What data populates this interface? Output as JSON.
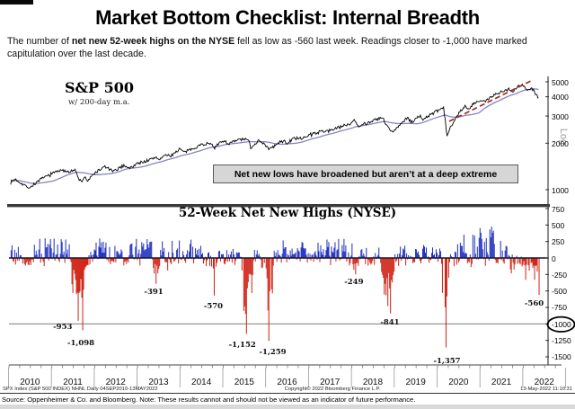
{
  "page": {
    "title": "Market Bottom Checklist: Internal Breadth",
    "subtitle_pre": "The number of ",
    "subtitle_bold": "net new 52-week highs on the NYSE",
    "subtitle_post": " fell as low as -560 last week.  Readings closer to -1,000 have marked capitulation over the last decade."
  },
  "colors": {
    "positive_bar": "#1f2fbf",
    "negative_bar": "#cf2012",
    "price_line": "#000000",
    "ma_line": "#8585c5",
    "trend_dash": "#9e2b25",
    "gridline_minus_1000": "#8a8a8a",
    "axis": "#444444",
    "divider": "#3a3a3a",
    "callout_bg": "#d6d6d6"
  },
  "top_chart": {
    "label": "S&P 500",
    "sublabel": "w/ 200-day m.a.",
    "callout": "Net new lows have broadened but aren’t at a deep extreme",
    "scale_label": "Log",
    "y_ticks": [
      {
        "label": "5000",
        "value": 5000
      },
      {
        "label": "4000",
        "value": 4000
      },
      {
        "label": "3000",
        "value": 3000
      },
      {
        "label": "2000",
        "value": 2000
      },
      {
        "label": "1000",
        "value": 1000
      }
    ]
  },
  "bottom_chart": {
    "title": "52-Week Net New Highs (NYSE)",
    "y_ticks": [
      {
        "label": "750",
        "value": 750
      },
      {
        "label": "500",
        "value": 500
      },
      {
        "label": "250",
        "value": 250
      },
      {
        "label": "0",
        "value": 0
      },
      {
        "label": "-250",
        "value": -250
      },
      {
        "label": "-500",
        "value": -500
      },
      {
        "label": "-750",
        "value": -750
      },
      {
        "label": "-1000",
        "value": -1000
      },
      {
        "label": "-1250",
        "value": -1250
      },
      {
        "label": "-1500",
        "value": -1500
      }
    ],
    "circled_tick": "-1000",
    "years": [
      "2010",
      "2011",
      "2012",
      "2013",
      "2014",
      "2015",
      "2016",
      "2017",
      "2018",
      "2019",
      "2020",
      "2021",
      "2022"
    ]
  },
  "footer": {
    "ticker_line": "SPX Index (S&P 500 INDEX) NHNL  Daily 04SEP2010-13MAY2022",
    "copyright": "Copyright© 2022 Bloomberg Finance L.P.",
    "timestamp": "13-May-2022 11:10:31",
    "source_note": "Source: Oppenheimer & Co. and Bloomberg.  Note: These results cannot and should not be viewed as an indicator of future performance."
  },
  "chart_data": [
    {
      "type": "line",
      "title": "S&P 500 w/ 200-day m.a.",
      "y_scale": "log",
      "ylim": [
        900,
        5300
      ],
      "x_range": [
        2010.05,
        2022.38
      ],
      "legend_position": "none",
      "grid": false,
      "series": [
        {
          "name": "S&P 500",
          "points": [
            [
              2010.05,
              1120
            ],
            [
              2010.15,
              1170
            ],
            [
              2010.35,
              1080
            ],
            [
              2010.5,
              1030
            ],
            [
              2010.7,
              1145
            ],
            [
              2011.0,
              1270
            ],
            [
              2011.15,
              1330
            ],
            [
              2011.35,
              1320
            ],
            [
              2011.55,
              1340
            ],
            [
              2011.62,
              1200
            ],
            [
              2011.7,
              1120
            ],
            [
              2011.78,
              1220
            ],
            [
              2011.85,
              1130
            ],
            [
              2012.0,
              1280
            ],
            [
              2012.25,
              1410
            ],
            [
              2012.45,
              1310
            ],
            [
              2012.7,
              1440
            ],
            [
              2012.85,
              1380
            ],
            [
              2013.0,
              1480
            ],
            [
              2013.3,
              1560
            ],
            [
              2013.45,
              1630
            ],
            [
              2013.5,
              1570
            ],
            [
              2013.7,
              1690
            ],
            [
              2013.75,
              1630
            ],
            [
              2014.0,
              1840
            ],
            [
              2014.1,
              1740
            ],
            [
              2014.5,
              1960
            ],
            [
              2014.75,
              2010
            ],
            [
              2014.8,
              1860
            ],
            [
              2015.0,
              2080
            ],
            [
              2015.15,
              1990
            ],
            [
              2015.4,
              2120
            ],
            [
              2015.6,
              2100
            ],
            [
              2015.65,
              1870
            ],
            [
              2015.85,
              2100
            ],
            [
              2016.1,
              1830
            ],
            [
              2016.4,
              2090
            ],
            [
              2016.5,
              2000
            ],
            [
              2016.7,
              2180
            ],
            [
              2016.85,
              2130
            ],
            [
              2017.0,
              2270
            ],
            [
              2017.3,
              2380
            ],
            [
              2017.6,
              2470
            ],
            [
              2018.0,
              2700
            ],
            [
              2018.07,
              2870
            ],
            [
              2018.15,
              2580
            ],
            [
              2018.4,
              2740
            ],
            [
              2018.73,
              2930
            ],
            [
              2018.8,
              2650
            ],
            [
              2018.95,
              2350
            ],
            [
              2019.3,
              2900
            ],
            [
              2019.42,
              2750
            ],
            [
              2019.6,
              3020
            ],
            [
              2019.65,
              2840
            ],
            [
              2020.0,
              3230
            ],
            [
              2020.15,
              3380
            ],
            [
              2020.23,
              2240
            ],
            [
              2020.45,
              3000
            ],
            [
              2020.65,
              3480
            ],
            [
              2020.72,
              3270
            ],
            [
              2020.85,
              3600
            ],
            [
              2021.0,
              3760
            ],
            [
              2021.1,
              3700
            ],
            [
              2021.35,
              4180
            ],
            [
              2021.5,
              4300
            ],
            [
              2021.7,
              4530
            ],
            [
              2021.75,
              4300
            ],
            [
              2021.9,
              4700
            ],
            [
              2022.0,
              4790
            ],
            [
              2022.1,
              4350
            ],
            [
              2022.2,
              4600
            ],
            [
              2022.25,
              4400
            ],
            [
              2022.3,
              4150
            ],
            [
              2022.38,
              3930
            ]
          ]
        },
        {
          "name": "200-day m.a.",
          "derived": "trailing mean (40 weekly samples) of S&P 500 series"
        },
        {
          "name": "broken uptrend (red dashed)",
          "points_px_note": "straight dashed segment from ~(2020.3, 2900) to ~(2022.3, 5070)"
        }
      ]
    },
    {
      "type": "bar",
      "title": "52-Week Net New Highs (NYSE)",
      "ylim": [
        -1500,
        750
      ],
      "x_range": [
        2010.06,
        2022.38
      ],
      "zero_line": true,
      "reference_line_at": -1000,
      "annotations": [
        {
          "label": "-953",
          "t": 2011.62,
          "value": -953
        },
        {
          "label": "-1,098",
          "t": 2011.73,
          "value": -1098
        },
        {
          "label": "-391",
          "t": 2013.45,
          "value": -391
        },
        {
          "label": "-570",
          "t": 2014.8,
          "value": -570
        },
        {
          "label": "-1,152",
          "t": 2015.56,
          "value": -1152
        },
        {
          "label": "-1,259",
          "t": 2016.08,
          "value": -1259
        },
        {
          "label": "-249",
          "t": 2018.1,
          "value": -249
        },
        {
          "label": "-841",
          "t": 2018.92,
          "value": -841
        },
        {
          "label": "-1,357",
          "t": 2020.21,
          "value": -1357
        },
        {
          "label": "-560",
          "t": 2022.37,
          "value": -560
        }
      ],
      "positive_envelope": [
        [
          2010.05,
          2011.55,
          340
        ],
        [
          2011.55,
          2011.95,
          120
        ],
        [
          2011.95,
          2014.55,
          300
        ],
        [
          2014.55,
          2016.35,
          150
        ],
        [
          2016.35,
          2018.15,
          290
        ],
        [
          2018.15,
          2019.05,
          170
        ],
        [
          2019.05,
          2020.12,
          200
        ],
        [
          2020.12,
          2020.4,
          60
        ],
        [
          2020.4,
          2021.35,
          480
        ],
        [
          2021.35,
          2021.85,
          280
        ],
        [
          2021.85,
          2022.38,
          130
        ]
      ],
      "negative_episodes": [
        [
          2010.45,
          0.12,
          200
        ],
        [
          2010.8,
          0.05,
          80
        ],
        [
          2011.65,
          0.22,
          1000
        ],
        [
          2012.4,
          0.1,
          160
        ],
        [
          2012.75,
          0.06,
          120
        ],
        [
          2013.45,
          0.1,
          380
        ],
        [
          2013.7,
          0.07,
          260
        ],
        [
          2014.1,
          0.05,
          170
        ],
        [
          2014.55,
          0.05,
          150
        ],
        [
          2014.8,
          0.09,
          560
        ],
        [
          2015.05,
          0.05,
          160
        ],
        [
          2015.55,
          0.18,
          1100
        ],
        [
          2015.95,
          0.08,
          300
        ],
        [
          2016.1,
          0.1,
          1200
        ],
        [
          2016.5,
          0.05,
          200
        ],
        [
          2017.5,
          0.03,
          60
        ],
        [
          2018.1,
          0.09,
          240
        ],
        [
          2018.45,
          0.05,
          140
        ],
        [
          2018.85,
          0.2,
          800
        ],
        [
          2019.45,
          0.05,
          180
        ],
        [
          2019.62,
          0.04,
          140
        ],
        [
          2020.2,
          0.1,
          1300
        ],
        [
          2020.5,
          0.04,
          100
        ],
        [
          2020.77,
          0.08,
          280
        ],
        [
          2021.2,
          0.04,
          100
        ],
        [
          2021.55,
          0.07,
          180
        ],
        [
          2021.75,
          0.09,
          280
        ],
        [
          2021.95,
          0.1,
          330
        ],
        [
          2022.12,
          0.12,
          430
        ],
        [
          2022.28,
          0.08,
          500
        ],
        [
          2022.37,
          0.04,
          560
        ]
      ]
    }
  ]
}
